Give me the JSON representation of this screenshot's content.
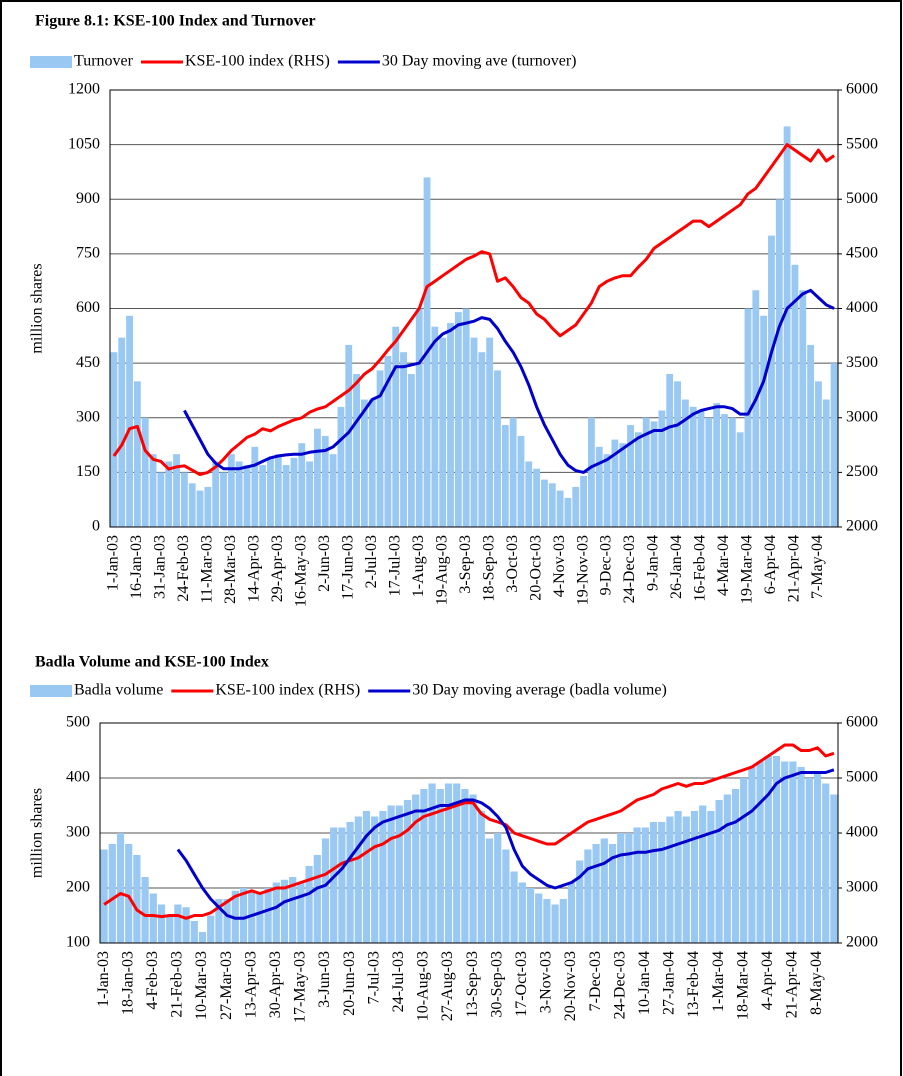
{
  "chart_data": [
    {
      "type": "combo",
      "title": "Figure 8.1: KSE-100 Index and Turnover",
      "y_label": "million shares",
      "categories": [
        "1-Jan-03",
        null,
        null,
        "16-Jan-03",
        null,
        null,
        "31-Jan-03",
        null,
        null,
        "24-Feb-03",
        null,
        null,
        "11-Mar-03",
        null,
        null,
        "28-Mar-03",
        null,
        null,
        "14-Apr-03",
        null,
        null,
        "29-Apr-03",
        null,
        null,
        "16-May-03",
        null,
        null,
        "2-Jun-03",
        null,
        null,
        "17-Jun-03",
        null,
        null,
        "2-Jul-03",
        null,
        null,
        "17-Jul-03",
        null,
        null,
        "1-Aug-03",
        null,
        null,
        "19-Aug-03",
        null,
        null,
        "3-Sep-03",
        null,
        null,
        "18-Sep-03",
        null,
        null,
        "3-Oct-03",
        null,
        null,
        "20-Oct-03",
        null,
        null,
        "4-Nov-03",
        null,
        null,
        "19-Nov-03",
        null,
        null,
        "9-Dec-03",
        null,
        null,
        "24-Dec-03",
        null,
        null,
        "9-Jan-04",
        null,
        null,
        "26-Jan-04",
        null,
        null,
        "16-Feb-04",
        null,
        null,
        "4-Mar-04",
        null,
        null,
        "19-Mar-04",
        null,
        null,
        "6-Apr-04",
        null,
        null,
        "21-Apr-04",
        null,
        null,
        "7-May-04",
        null,
        null
      ],
      "series": [
        {
          "name": "Turnover",
          "type": "bar",
          "color": "#99c8f2",
          "values": [
            480,
            520,
            580,
            400,
            300,
            200,
            150,
            180,
            200,
            150,
            120,
            100,
            110,
            180,
            150,
            200,
            180,
            170,
            220,
            170,
            190,
            200,
            170,
            190,
            230,
            180,
            270,
            250,
            200,
            330,
            500,
            420,
            350,
            350,
            430,
            470,
            550,
            480,
            420,
            600,
            960,
            550,
            520,
            560,
            590,
            600,
            520,
            480,
            520,
            430,
            280,
            300,
            250,
            180,
            160,
            130,
            120,
            100,
            80,
            110,
            140,
            300,
            220,
            200,
            240,
            230,
            280,
            260,
            300,
            290,
            320,
            420,
            400,
            350,
            330,
            320,
            300,
            340,
            310,
            300,
            260,
            600,
            650,
            580,
            800,
            900,
            1100,
            720,
            650,
            500,
            400,
            350,
            450
          ]
        },
        {
          "name": "KSE-100 index (RHS)",
          "type": "line",
          "axis": "y2",
          "color": "#ff0000",
          "values": [
            2650,
            2750,
            2900,
            2920,
            2700,
            2620,
            2600,
            2530,
            2550,
            2560,
            2520,
            2480,
            2500,
            2550,
            2620,
            2700,
            2760,
            2820,
            2850,
            2900,
            2880,
            2920,
            2950,
            2980,
            3000,
            3050,
            3080,
            3100,
            3150,
            3200,
            3250,
            3320,
            3400,
            3450,
            3530,
            3620,
            3700,
            3800,
            3900,
            4000,
            4200,
            4250,
            4300,
            4350,
            4400,
            4450,
            4480,
            4520,
            4500,
            4250,
            4280,
            4200,
            4100,
            4050,
            3950,
            3900,
            3820,
            3750,
            3800,
            3850,
            3950,
            4050,
            4200,
            4250,
            4280,
            4300,
            4300,
            4380,
            4450,
            4550,
            4600,
            4650,
            4700,
            4750,
            4800,
            4800,
            4750,
            4800,
            4850,
            4900,
            4950,
            5050,
            5100,
            5200,
            5300,
            5400,
            5500,
            5450,
            5400,
            5350,
            5450,
            5350,
            5400
          ]
        },
        {
          "name": "30 Day moving ave (turnover)",
          "type": "line",
          "color": "#0000cc",
          "values": [
            null,
            null,
            null,
            null,
            null,
            null,
            null,
            null,
            null,
            320,
            280,
            240,
            200,
            175,
            160,
            160,
            160,
            165,
            170,
            180,
            190,
            195,
            198,
            200,
            200,
            205,
            208,
            210,
            220,
            240,
            260,
            290,
            320,
            350,
            360,
            400,
            440,
            440,
            445,
            450,
            480,
            510,
            530,
            540,
            555,
            560,
            565,
            575,
            570,
            545,
            510,
            480,
            440,
            390,
            330,
            280,
            240,
            200,
            170,
            155,
            150,
            165,
            175,
            185,
            200,
            215,
            230,
            245,
            255,
            265,
            265,
            275,
            280,
            295,
            310,
            320,
            325,
            330,
            330,
            325,
            310,
            310,
            350,
            400,
            480,
            550,
            600,
            620,
            640,
            650,
            630,
            610,
            600
          ]
        }
      ],
      "ylim": [
        0,
        1200
      ],
      "yticks": [
        0,
        150,
        300,
        450,
        600,
        750,
        900,
        1050,
        1200
      ],
      "y2lim": [
        2000,
        6000
      ],
      "y2ticks": [
        2000,
        2500,
        3000,
        3500,
        4000,
        4500,
        5000,
        5500,
        6000
      ],
      "grid": true
    },
    {
      "type": "combo",
      "title": "Badla Volume and KSE-100 Index",
      "y_label": "million shares",
      "categories": [
        "1-Jan-03",
        null,
        null,
        "18-Jan-03",
        null,
        null,
        "4-Feb-03",
        null,
        null,
        "21-Feb-03",
        null,
        null,
        "10-Mar-03",
        null,
        null,
        "27-Mar-03",
        null,
        null,
        "13-Apr-03",
        null,
        null,
        "30-Apr-03",
        null,
        null,
        "17-May-03",
        null,
        null,
        "3-Jun-03",
        null,
        null,
        "20-Jun-03",
        null,
        null,
        "7-Jul-03",
        null,
        null,
        "24-Jul-03",
        null,
        null,
        "10-Aug-03",
        null,
        null,
        "27-Aug-03",
        null,
        null,
        "13-Sep-03",
        null,
        null,
        "30-Sep-03",
        null,
        null,
        "17-Oct-03",
        null,
        null,
        "3-Nov-03",
        null,
        null,
        "20-Nov-03",
        null,
        null,
        "7-Dec-03",
        null,
        null,
        "24-Dec-03",
        null,
        null,
        "10-Jan-04",
        null,
        null,
        "27-Jan-04",
        null,
        null,
        "13-Feb-04",
        null,
        null,
        "1-Mar-04",
        null,
        null,
        "18-Mar-04",
        null,
        null,
        "4-Apr-04",
        null,
        null,
        "21-Apr-04",
        null,
        null,
        "8-May-04",
        null,
        null
      ],
      "series": [
        {
          "name": "Badla volume",
          "type": "bar",
          "color": "#99c8f2",
          "values": [
            270,
            280,
            300,
            280,
            260,
            220,
            190,
            170,
            150,
            170,
            165,
            140,
            120,
            150,
            180,
            180,
            195,
            200,
            195,
            190,
            200,
            210,
            215,
            220,
            210,
            240,
            260,
            290,
            310,
            310,
            320,
            330,
            340,
            330,
            340,
            350,
            350,
            360,
            370,
            380,
            390,
            380,
            390,
            390,
            380,
            370,
            340,
            290,
            300,
            270,
            230,
            210,
            200,
            190,
            180,
            170,
            180,
            210,
            250,
            270,
            280,
            290,
            280,
            300,
            300,
            310,
            310,
            320,
            320,
            330,
            340,
            330,
            340,
            350,
            340,
            360,
            370,
            380,
            400,
            420,
            430,
            440,
            440,
            430,
            430,
            420,
            400,
            410,
            390,
            370
          ]
        },
        {
          "name": "KSE-100 index (RHS)",
          "type": "line",
          "axis": "y2",
          "color": "#ff0000",
          "values": [
            2700,
            2800,
            2900,
            2850,
            2600,
            2500,
            2500,
            2480,
            2500,
            2500,
            2450,
            2500,
            2500,
            2550,
            2650,
            2750,
            2850,
            2900,
            2950,
            2900,
            2950,
            3000,
            3000,
            3050,
            3100,
            3150,
            3200,
            3250,
            3350,
            3450,
            3500,
            3550,
            3650,
            3750,
            3800,
            3900,
            3950,
            4050,
            4200,
            4300,
            4350,
            4400,
            4450,
            4500,
            4550,
            4550,
            4350,
            4250,
            4200,
            4150,
            4000,
            3950,
            3900,
            3850,
            3800,
            3800,
            3900,
            4000,
            4100,
            4200,
            4250,
            4300,
            4350,
            4400,
            4500,
            4600,
            4650,
            4700,
            4800,
            4850,
            4900,
            4850,
            4900,
            4900,
            4950,
            5000,
            5050,
            5100,
            5150,
            5200,
            5300,
            5400,
            5500,
            5600,
            5600,
            5500,
            5500,
            5550,
            5400,
            5450
          ]
        },
        {
          "name": "30 Day moving average (badla volume)",
          "type": "line",
          "color": "#0000cc",
          "values": [
            null,
            null,
            null,
            null,
            null,
            null,
            null,
            null,
            null,
            270,
            250,
            225,
            200,
            180,
            165,
            150,
            145,
            145,
            150,
            155,
            160,
            165,
            175,
            180,
            185,
            190,
            200,
            205,
            220,
            235,
            255,
            275,
            295,
            310,
            320,
            325,
            330,
            335,
            340,
            340,
            345,
            350,
            350,
            355,
            360,
            360,
            355,
            345,
            330,
            310,
            270,
            240,
            225,
            215,
            205,
            200,
            205,
            210,
            220,
            235,
            240,
            245,
            255,
            260,
            262,
            265,
            265,
            268,
            270,
            275,
            280,
            285,
            290,
            295,
            300,
            305,
            315,
            320,
            330,
            340,
            355,
            370,
            390,
            400,
            405,
            410,
            410,
            410,
            410,
            415
          ]
        }
      ],
      "ylim": [
        100,
        500
      ],
      "yticks": [
        100,
        200,
        300,
        400,
        500
      ],
      "y2lim": [
        2000,
        6000
      ],
      "y2ticks": [
        2000,
        3000,
        4000,
        5000,
        6000
      ],
      "grid": true
    }
  ]
}
